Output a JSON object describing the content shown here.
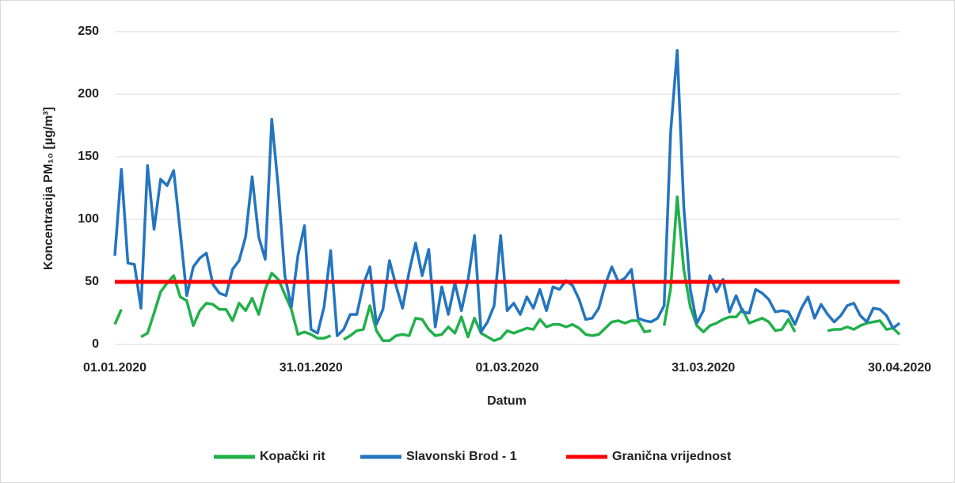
{
  "chart_data": {
    "type": "line",
    "y_label": "Koncentracija PM₁₀ [µg/m³]",
    "x_label": "Datum",
    "categories": [
      "01.01.2020",
      null,
      null,
      null,
      null,
      null,
      null,
      null,
      null,
      null,
      null,
      null,
      null,
      null,
      null,
      null,
      null,
      null,
      null,
      null,
      null,
      null,
      null,
      null,
      null,
      null,
      null,
      null,
      null,
      null,
      "31.01.2020",
      null,
      null,
      null,
      null,
      null,
      null,
      null,
      null,
      null,
      null,
      null,
      null,
      null,
      null,
      null,
      null,
      null,
      null,
      null,
      null,
      null,
      null,
      null,
      null,
      null,
      null,
      null,
      null,
      null,
      "01.03.2020",
      null,
      null,
      null,
      null,
      null,
      null,
      null,
      null,
      null,
      null,
      null,
      null,
      null,
      null,
      null,
      null,
      null,
      null,
      null,
      null,
      null,
      null,
      null,
      null,
      null,
      null,
      null,
      null,
      null,
      "31.03.2020",
      null,
      null,
      null,
      null,
      null,
      null,
      null,
      null,
      null,
      null,
      null,
      null,
      null,
      null,
      null,
      null,
      null,
      null,
      null,
      null,
      null,
      null,
      null,
      null,
      null,
      null,
      null,
      null,
      null,
      "30.04.2020"
    ],
    "series": [
      {
        "name": "Kopački rit",
        "color": "#22b04b",
        "values": [
          16,
          28,
          null,
          null,
          6,
          9,
          25,
          42,
          49,
          55,
          38,
          35,
          15,
          27,
          33,
          32,
          28,
          28,
          19,
          33,
          27,
          37,
          24,
          44,
          57,
          52,
          40,
          28,
          8,
          10,
          8,
          5,
          5,
          7,
          null,
          4,
          7,
          11,
          12,
          31,
          11,
          3,
          3,
          7,
          8,
          7,
          21,
          20,
          12,
          7,
          8,
          14,
          9,
          22,
          6,
          21,
          9,
          6,
          3,
          5,
          11,
          9,
          11,
          13,
          12,
          20,
          14,
          16,
          16,
          14,
          16,
          13,
          8,
          7,
          8,
          13,
          18,
          19,
          17,
          19,
          19,
          10,
          11,
          null,
          15,
          45,
          118,
          60,
          30,
          15,
          10,
          15,
          17,
          20,
          22,
          22,
          28,
          17,
          19,
          21,
          18,
          11,
          12,
          20,
          10,
          null,
          null,
          null,
          null,
          11,
          12,
          12,
          14,
          12,
          15,
          17,
          18,
          19,
          12,
          13,
          8
        ]
      },
      {
        "name": "Slavonski Brod - 1",
        "color": "#2475c0",
        "values": [
          71,
          140,
          65,
          64,
          29,
          143,
          92,
          132,
          127,
          139,
          90,
          39,
          62,
          69,
          73,
          48,
          41,
          39,
          60,
          67,
          86,
          134,
          86,
          68,
          180,
          125,
          55,
          30,
          71,
          95,
          12,
          9,
          30,
          75,
          7,
          12,
          24,
          24,
          48,
          62,
          16,
          28,
          67,
          47,
          29,
          58,
          81,
          55,
          76,
          14,
          46,
          24,
          49,
          27,
          51,
          87,
          10,
          18,
          31,
          87,
          27,
          33,
          24,
          38,
          29,
          44,
          27,
          46,
          44,
          51,
          47,
          36,
          20,
          21,
          29,
          48,
          62,
          50,
          53,
          60,
          21,
          19,
          18,
          21,
          31,
          170,
          235,
          110,
          44,
          17,
          27,
          55,
          42,
          52,
          26,
          39,
          26,
          25,
          44,
          41,
          36,
          26,
          27,
          26,
          16,
          29,
          38,
          21,
          32,
          24,
          18,
          23,
          31,
          33,
          23,
          18,
          29,
          28,
          23,
          13,
          17
        ]
      },
      {
        "name": "Granična vrijednost",
        "color": "#ff0000",
        "values": [
          50,
          50,
          50,
          50,
          50,
          50,
          50,
          50,
          50,
          50,
          50,
          50,
          50,
          50,
          50,
          50,
          50,
          50,
          50,
          50,
          50,
          50,
          50,
          50,
          50,
          50,
          50,
          50,
          50,
          50,
          50,
          50,
          50,
          50,
          50,
          50,
          50,
          50,
          50,
          50,
          50,
          50,
          50,
          50,
          50,
          50,
          50,
          50,
          50,
          50,
          50,
          50,
          50,
          50,
          50,
          50,
          50,
          50,
          50,
          50,
          50,
          50,
          50,
          50,
          50,
          50,
          50,
          50,
          50,
          50,
          50,
          50,
          50,
          50,
          50,
          50,
          50,
          50,
          50,
          50,
          50,
          50,
          50,
          50,
          50,
          50,
          50,
          50,
          50,
          50,
          50,
          50,
          50,
          50,
          50,
          50,
          50,
          50,
          50,
          50,
          50,
          50,
          50,
          50,
          50,
          50,
          50,
          50,
          50,
          50,
          50,
          50,
          50,
          50,
          50,
          50,
          50,
          50,
          50,
          50,
          50
        ]
      }
    ],
    "ylim": [
      0,
      250
    ],
    "yticks": [
      0,
      50,
      100,
      150,
      200,
      250
    ],
    "grid": true,
    "legend": "bottom"
  }
}
